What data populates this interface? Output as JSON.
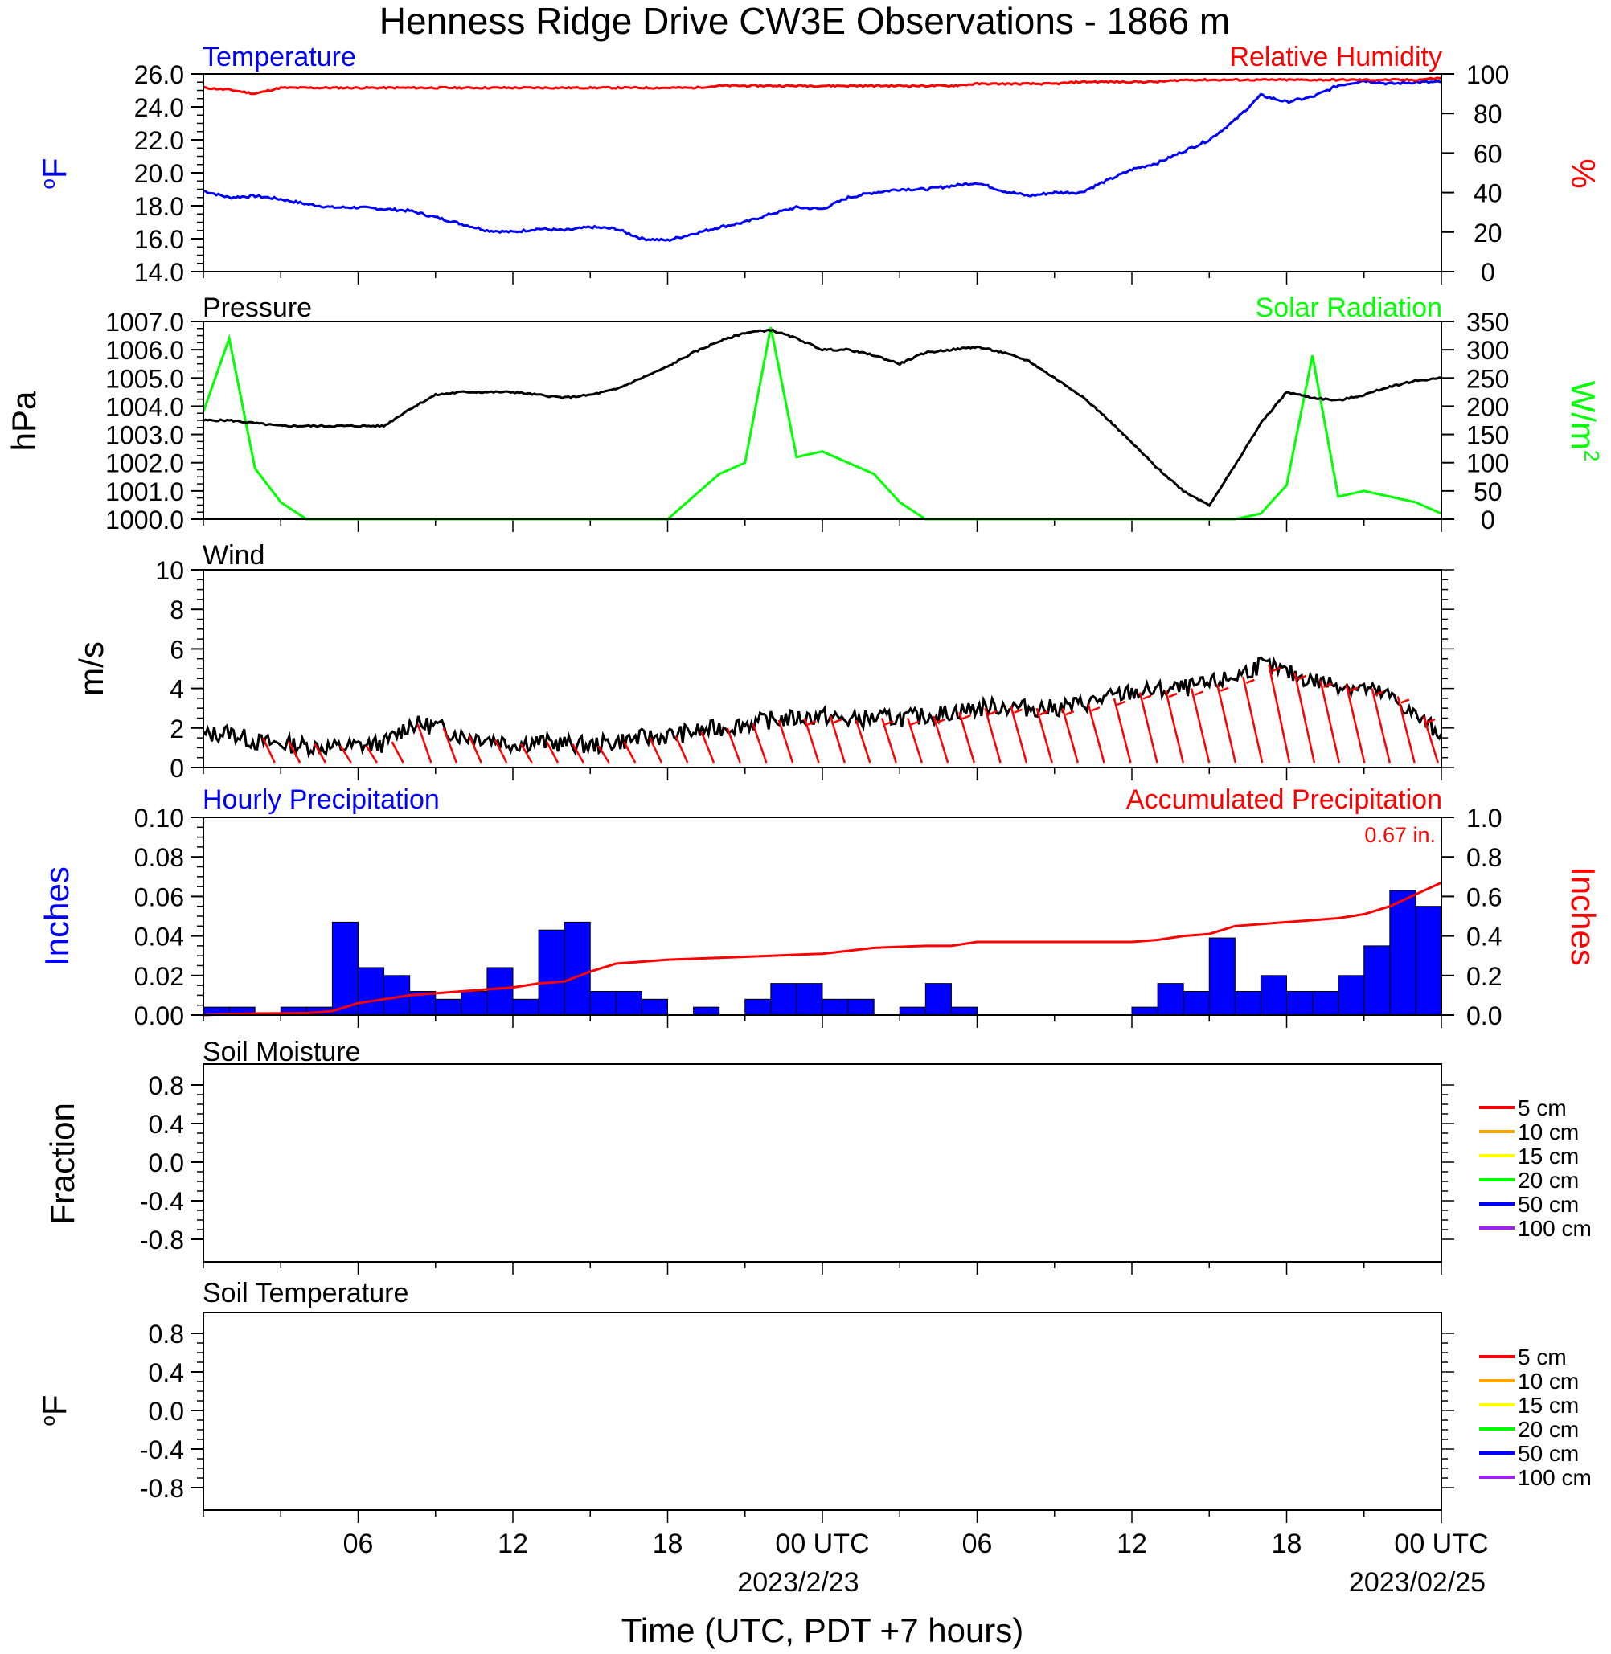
{
  "title": "Henness Ridge Drive CW3E Observations - 1866 m",
  "x_axis": {
    "label": "Time (UTC, PDT +7 hours)",
    "tick_labels": [
      "06",
      "12",
      "18",
      "00 UTC",
      "06",
      "12",
      "18",
      "00 UTC"
    ],
    "date_labels": [
      "2023/2/23",
      "2023/02/25"
    ]
  },
  "chart_data": [
    {
      "type": "line",
      "panel": "temperature_humidity",
      "left_title": "Temperature",
      "right_title": "Relative Humidity",
      "ylabel": "°F",
      "ylabel_base": "o",
      "ylabel_main": "F",
      "ylabel_right": "%",
      "ylim": [
        14,
        26
      ],
      "ylim_right": [
        0,
        100
      ],
      "yticks": [
        "26.0",
        "24.0",
        "22.0",
        "20.0",
        "18.0",
        "16.0",
        "14.0"
      ],
      "yticks_right": [
        "100",
        "80",
        "60",
        "40",
        "20",
        "0"
      ],
      "x_hours": [
        0,
        1,
        2,
        3,
        4,
        5,
        6,
        7,
        8,
        9,
        10,
        11,
        12,
        13,
        14,
        15,
        16,
        17,
        18,
        19,
        20,
        21,
        22,
        23,
        24,
        25,
        26,
        27,
        28,
        29,
        30,
        31,
        32,
        33,
        34,
        35,
        36,
        37,
        38,
        39,
        40,
        41,
        42,
        43,
        44,
        45,
        46,
        47,
        48
      ],
      "series": [
        {
          "name": "Temperature",
          "color": "#0000ff",
          "axis": "left",
          "values": [
            18.9,
            18.5,
            18.6,
            18.4,
            18.1,
            17.9,
            17.9,
            17.8,
            17.7,
            17.3,
            16.9,
            16.5,
            16.4,
            16.6,
            16.5,
            16.7,
            16.6,
            16.0,
            15.9,
            16.3,
            16.7,
            17.0,
            17.5,
            17.9,
            17.8,
            18.5,
            18.8,
            19.0,
            19.0,
            19.2,
            19.4,
            18.9,
            18.6,
            18.8,
            18.8,
            19.5,
            20.2,
            20.6,
            21.3,
            22.0,
            23.2,
            24.7,
            24.3,
            24.6,
            25.3,
            25.6,
            25.4,
            25.5,
            25.5
          ]
        },
        {
          "name": "Relative Humidity",
          "color": "#ff0000",
          "axis": "right",
          "values": [
            93,
            92,
            90,
            93,
            93,
            93,
            93,
            93,
            93,
            93,
            93,
            93,
            93,
            93,
            93,
            93,
            93,
            93,
            93,
            93,
            94,
            94,
            94,
            94,
            94,
            94,
            94,
            94,
            94,
            94,
            95,
            95,
            95,
            95,
            96,
            96,
            96,
            96,
            97,
            97,
            97,
            97,
            97,
            97,
            97,
            97,
            97,
            97,
            98
          ]
        }
      ]
    },
    {
      "type": "line",
      "panel": "pressure_solar",
      "left_title": "Pressure",
      "right_title": "Solar Radiation",
      "ylabel": "hPa",
      "ylabel_right": "W/m2",
      "ylabel_right_main": "W/m",
      "ylabel_right_sup": "2",
      "ylim": [
        1000,
        1007
      ],
      "ylim_right": [
        0,
        350
      ],
      "yticks": [
        "1007.0",
        "1006.0",
        "1005.0",
        "1004.0",
        "1003.0",
        "1002.0",
        "1001.0",
        "1000.0"
      ],
      "yticks_right": [
        "350",
        "300",
        "250",
        "200",
        "150",
        "100",
        "50",
        "0"
      ],
      "x_hours": [
        0,
        1,
        2,
        3,
        4,
        5,
        6,
        7,
        8,
        9,
        10,
        11,
        12,
        13,
        14,
        15,
        16,
        17,
        18,
        19,
        20,
        21,
        22,
        23,
        24,
        25,
        26,
        27,
        28,
        29,
        30,
        31,
        32,
        33,
        34,
        35,
        36,
        37,
        38,
        39,
        40,
        41,
        42,
        43,
        44,
        45,
        46,
        47,
        48
      ],
      "series": [
        {
          "name": "Pressure",
          "color": "#000000",
          "axis": "left",
          "values": [
            1003.5,
            1003.5,
            1003.4,
            1003.3,
            1003.3,
            1003.3,
            1003.3,
            1003.3,
            1003.9,
            1004.4,
            1004.5,
            1004.5,
            1004.5,
            1004.4,
            1004.3,
            1004.4,
            1004.6,
            1005.0,
            1005.4,
            1005.9,
            1006.3,
            1006.6,
            1006.7,
            1006.4,
            1006.0,
            1006.0,
            1005.8,
            1005.5,
            1005.9,
            1006.0,
            1006.1,
            1005.9,
            1005.6,
            1005.0,
            1004.4,
            1003.6,
            1002.7,
            1001.8,
            1001.0,
            1000.5,
            1001.9,
            1003.4,
            1004.5,
            1004.3,
            1004.2,
            1004.4,
            1004.7,
            1004.9,
            1005.0
          ]
        },
        {
          "name": "Solar Radiation",
          "color": "#00ff00",
          "axis": "right",
          "values": [
            190,
            320,
            90,
            30,
            0,
            0,
            0,
            0,
            0,
            0,
            0,
            0,
            0,
            0,
            0,
            0,
            0,
            0,
            0,
            40,
            80,
            100,
            340,
            110,
            120,
            100,
            80,
            30,
            0,
            0,
            0,
            0,
            0,
            0,
            0,
            0,
            0,
            0,
            0,
            0,
            0,
            10,
            60,
            290,
            40,
            50,
            40,
            30,
            10
          ]
        }
      ]
    },
    {
      "type": "line",
      "panel": "wind",
      "left_title": "Wind",
      "ylabel": "m/s",
      "ylim": [
        0,
        10
      ],
      "yticks": [
        "10",
        "8",
        "6",
        "4",
        "2",
        "0"
      ],
      "x_hours": [
        0,
        1,
        2,
        3,
        4,
        5,
        6,
        7,
        8,
        9,
        10,
        11,
        12,
        13,
        14,
        15,
        16,
        17,
        18,
        19,
        20,
        21,
        22,
        23,
        24,
        25,
        26,
        27,
        28,
        29,
        30,
        31,
        32,
        33,
        34,
        35,
        36,
        37,
        38,
        39,
        40,
        41,
        42,
        43,
        44,
        45,
        46,
        47,
        48
      ],
      "series": [
        {
          "name": "Wind Speed",
          "color": "#000000",
          "values": [
            1.6,
            1.8,
            1.3,
            1.2,
            1.1,
            1.0,
            1.1,
            1.2,
            2.2,
            2.1,
            1.6,
            1.5,
            1.2,
            1.3,
            1.2,
            1.1,
            1.3,
            1.5,
            1.6,
            1.8,
            2.0,
            2.2,
            2.4,
            2.5,
            2.6,
            2.4,
            2.5,
            2.5,
            2.6,
            2.8,
            3.0,
            3.1,
            3.0,
            3.0,
            3.2,
            3.5,
            3.8,
            3.9,
            4.0,
            4.2,
            4.6,
            5.2,
            4.8,
            4.4,
            4.2,
            4.0,
            3.6,
            2.6,
            1.7
          ]
        }
      ],
      "barbs_color": "#ff0000",
      "barb_hours": [
        2,
        3,
        4,
        5,
        6,
        7,
        8,
        9,
        10,
        11,
        12,
        13,
        14,
        15,
        16,
        17,
        18,
        19,
        20,
        21,
        22,
        23,
        24,
        25,
        26,
        27,
        28,
        29,
        30,
        31,
        32,
        33,
        34,
        35,
        36,
        37,
        38,
        39,
        40,
        41,
        42,
        43,
        44,
        45,
        46,
        47
      ],
      "barb_speeds": [
        1.5,
        1.3,
        1.2,
        1.1,
        1.1,
        1.3,
        2.2,
        2.0,
        1.6,
        1.4,
        1.2,
        1.3,
        1.2,
        1.1,
        1.3,
        1.5,
        1.6,
        1.8,
        2.0,
        2.2,
        2.4,
        2.5,
        2.6,
        2.4,
        2.5,
        2.5,
        2.6,
        2.8,
        3.0,
        3.1,
        3.0,
        3.0,
        3.2,
        3.5,
        3.8,
        3.9,
        4.0,
        4.2,
        4.6,
        5.2,
        4.8,
        4.4,
        4.2,
        4.0,
        3.6,
        2.6
      ]
    },
    {
      "type": "bar",
      "panel": "precipitation",
      "left_title": "Hourly Precipitation",
      "right_title": "Accumulated Precipitation",
      "total_label": "0.67 in.",
      "ylabel": "Inches",
      "ylabel_right": "Inches",
      "ylim": [
        0,
        0.1
      ],
      "ylim_right": [
        0,
        1.0
      ],
      "yticks": [
        "0.10",
        "0.08",
        "0.06",
        "0.04",
        "0.02",
        "0.00"
      ],
      "yticks_right": [
        "1.0",
        "0.8",
        "0.6",
        "0.4",
        "0.2",
        "0.0"
      ],
      "hours": [
        0,
        1,
        2,
        3,
        4,
        5,
        6,
        7,
        8,
        9,
        10,
        11,
        12,
        13,
        14,
        15,
        16,
        17,
        18,
        19,
        20,
        21,
        22,
        23,
        24,
        25,
        26,
        27,
        28,
        29,
        30,
        31,
        32,
        33,
        34,
        35,
        36,
        37,
        38,
        39,
        40,
        41,
        42,
        43,
        44,
        45,
        46,
        47
      ],
      "series": [
        {
          "name": "Hourly Precipitation",
          "color": "#0000ff",
          "values": [
            0.004,
            0.004,
            0,
            0.004,
            0.004,
            0.047,
            0.024,
            0.02,
            0.012,
            0.008,
            0.012,
            0.024,
            0.008,
            0.043,
            0.047,
            0.012,
            0.012,
            0.008,
            0,
            0.004,
            0,
            0.008,
            0.016,
            0.016,
            0.008,
            0.008,
            0,
            0.004,
            0.016,
            0.004,
            0,
            0,
            0,
            0,
            0,
            0,
            0.004,
            0.016,
            0.012,
            0.039,
            0.012,
            0.02,
            0.012,
            0.012,
            0.02,
            0.035,
            0.063,
            0.055
          ]
        },
        {
          "name": "Accumulated Precipitation",
          "color": "#ff0000",
          "x_hours": [
            0,
            1,
            2,
            4,
            5,
            6,
            7,
            8,
            9,
            10,
            11,
            12,
            13,
            14,
            15,
            16,
            17,
            18,
            20,
            22,
            24,
            26,
            28,
            29,
            30,
            32,
            34,
            36,
            37,
            38,
            39,
            40,
            42,
            44,
            45,
            46,
            47,
            48
          ],
          "values": [
            0,
            0.005,
            0.008,
            0.01,
            0.02,
            0.06,
            0.08,
            0.1,
            0.11,
            0.12,
            0.13,
            0.14,
            0.16,
            0.17,
            0.22,
            0.26,
            0.27,
            0.28,
            0.29,
            0.3,
            0.31,
            0.34,
            0.35,
            0.35,
            0.37,
            0.37,
            0.37,
            0.37,
            0.38,
            0.4,
            0.41,
            0.45,
            0.47,
            0.49,
            0.51,
            0.55,
            0.61,
            0.67
          ]
        }
      ]
    },
    {
      "type": "line",
      "panel": "soil_moisture",
      "left_title": "Soil Moisture",
      "ylabel": "Fraction",
      "ylim": [
        -1,
        1
      ],
      "yticks": [
        "0.8",
        "0.4",
        "0.0",
        "-0.4",
        "-0.8"
      ],
      "legend": [
        {
          "name": "5 cm",
          "color": "#ff0000"
        },
        {
          "name": "10 cm",
          "color": "#ffa500"
        },
        {
          "name": "15 cm",
          "color": "#ffff00"
        },
        {
          "name": "20 cm",
          "color": "#00ff00"
        },
        {
          "name": "50 cm",
          "color": "#0000ff"
        },
        {
          "name": "100 cm",
          "color": "#a020f0"
        }
      ],
      "series": []
    },
    {
      "type": "line",
      "panel": "soil_temperature",
      "left_title": "Soil Temperature",
      "ylabel": "°F",
      "ylabel_base": "o",
      "ylabel_main": "F",
      "ylim": [
        -1,
        1
      ],
      "yticks": [
        "0.8",
        "0.4",
        "0.0",
        "-0.4",
        "-0.8"
      ],
      "legend": [
        {
          "name": "5 cm",
          "color": "#ff0000"
        },
        {
          "name": "10 cm",
          "color": "#ffa500"
        },
        {
          "name": "15 cm",
          "color": "#ffff00"
        },
        {
          "name": "20 cm",
          "color": "#00ff00"
        },
        {
          "name": "50 cm",
          "color": "#0000ff"
        },
        {
          "name": "100 cm",
          "color": "#a020f0"
        }
      ],
      "series": []
    }
  ]
}
